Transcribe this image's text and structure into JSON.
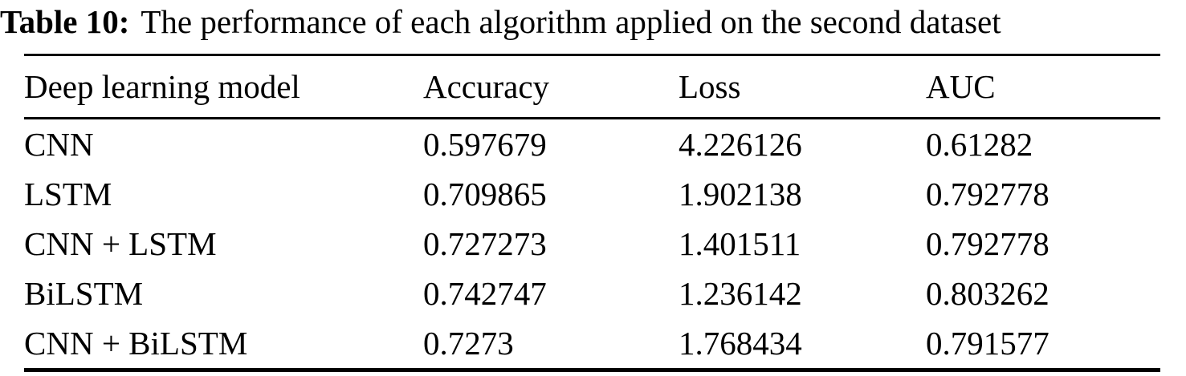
{
  "caption": {
    "label": "Table 10:",
    "text": "The performance of each algorithm applied on the second dataset"
  },
  "table": {
    "columns": [
      "Deep learning model",
      "Accuracy",
      "Loss",
      "AUC"
    ],
    "rows": [
      [
        "CNN",
        "0.597679",
        "4.226126",
        "0.61282"
      ],
      [
        "LSTM",
        "0.709865",
        "1.902138",
        "0.792778"
      ],
      [
        "CNN + LSTM",
        "0.727273",
        "1.401511",
        "0.792778"
      ],
      [
        "BiLSTM",
        "0.742747",
        "1.236142",
        "0.803262"
      ],
      [
        "CNN + BiLSTM",
        "0.7273",
        "1.768434",
        "0.791577"
      ]
    ]
  },
  "colors": {
    "text": "#000000",
    "background": "#ffffff",
    "rule": "#000000"
  }
}
